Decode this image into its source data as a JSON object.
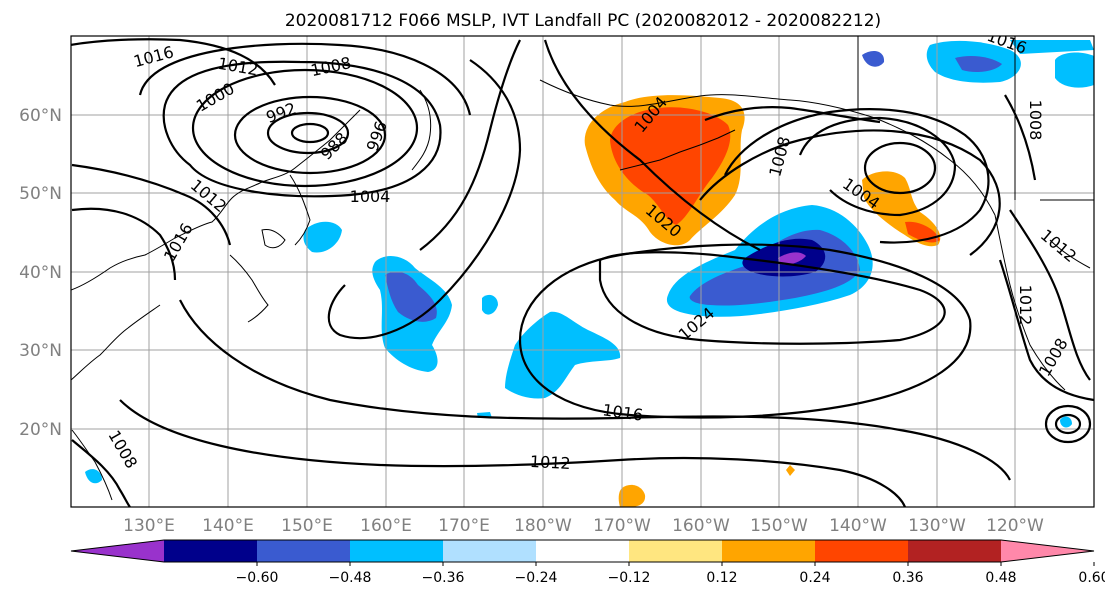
{
  "title": "2020081712 F066 MSLP, IVT Landfall PC (2020082012 - 2020082212)",
  "lat_labels": [
    "60°N",
    "50°N",
    "40°N",
    "30°N",
    "20°N"
  ],
  "lon_labels": [
    "130°E",
    "140°E",
    "150°E",
    "160°E",
    "170°E",
    "180°W",
    "170°W",
    "160°W",
    "150°W",
    "140°W",
    "130°W",
    "120°W"
  ],
  "colorbar": {
    "ticks": [
      "−0.60",
      "−0.48",
      "−0.36",
      "−0.24",
      "−0.12",
      "0.12",
      "0.24",
      "0.36",
      "0.48",
      "0.60"
    ],
    "colors": [
      "#9932CC",
      "#00008B",
      "#3A5BD0",
      "#00BFFF",
      "#B0E0FF",
      "#FFFFFF",
      "#FFE680",
      "#FFA500",
      "#FF4500",
      "#B22222",
      "#FF88AA"
    ]
  },
  "contour_labels": [
    "1016",
    "1012",
    "1008",
    "1000",
    "996",
    "992",
    "988",
    "1004",
    "1012",
    "1016",
    "1004",
    "1008",
    "1020",
    "1008",
    "1004",
    "1024",
    "1016",
    "1012",
    "1008",
    "1008",
    "1012",
    "1012",
    "1016"
  ]
}
